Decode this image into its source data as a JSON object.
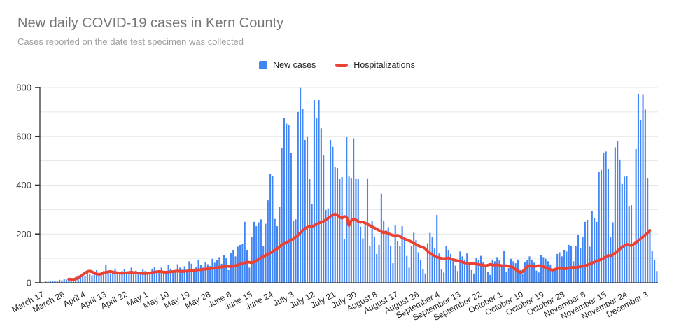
{
  "header": {
    "title": "New daily COVID-19 cases in Kern County",
    "subtitle": "Cases reported on the date test specimen was collected"
  },
  "legend": {
    "items": [
      {
        "label": "New cases",
        "color": "#4285f4",
        "marker": "square"
      },
      {
        "label": "Hospitalizations",
        "color": "#ea4335",
        "marker": "line"
      }
    ]
  },
  "colors": {
    "bar": "#4285f4",
    "line": "#ea4335",
    "grid": "#e6e6e6",
    "axis": "#333333",
    "title": "#757575",
    "subtitle": "#9e9e9e",
    "tick_label": "#3c3c3c"
  },
  "chart_data": {
    "type": "combo",
    "title": "New daily COVID-19 cases in Kern County",
    "subtitle": "Cases reported on the date test specimen was collected",
    "xlabel": "",
    "ylabel": "",
    "ylim": [
      0,
      800
    ],
    "y_tick_labels": [
      "0",
      "200",
      "400",
      "600",
      "800"
    ],
    "y_tick_values": [
      0,
      200,
      400,
      600,
      800
    ],
    "y_minor_grid_step": 100,
    "grid": true,
    "legend_position": "top",
    "x_start_date": "March 17",
    "x_end_date": "December 8",
    "x_tick_interval_days": 9,
    "x_tick_labels": [
      "March 17",
      "March 26",
      "April 4",
      "April 13",
      "April 22",
      "May 1",
      "May 10",
      "May 19",
      "May 28",
      "June 6",
      "June 15",
      "June 24",
      "July 3",
      "July 12",
      "July 21",
      "July 30",
      "August 8",
      "August 17",
      "August 26",
      "September 4",
      "September 13",
      "September 22",
      "October 1",
      "October 10",
      "October 19",
      "October 28",
      "November 6",
      "November 15",
      "November 24",
      "December 3"
    ],
    "series": [
      {
        "name": "New cases",
        "type": "bar",
        "color": "#4285f4",
        "values": [
          3,
          2,
          5,
          4,
          7,
          6,
          9,
          8,
          12,
          10,
          15,
          13,
          18,
          16,
          20,
          24,
          30,
          26,
          35,
          28,
          42,
          38,
          30,
          45,
          52,
          40,
          36,
          48,
          74,
          44,
          38,
          42,
          58,
          35,
          35,
          48,
          55,
          42,
          38,
          62,
          46,
          50,
          40,
          36,
          54,
          48,
          42,
          36,
          58,
          66,
          44,
          52,
          62,
          40,
          38,
          72,
          58,
          50,
          46,
          76,
          62,
          54,
          68,
          46,
          88,
          78,
          58,
          66,
          95,
          72,
          62,
          85,
          76,
          68,
          98,
          82,
          92,
          105,
          78,
          112,
          100,
          52,
          122,
          135,
          108,
          148,
          155,
          160,
          250,
          135,
          62,
          188,
          250,
          232,
          248,
          260,
          150,
          242,
          338,
          445,
          438,
          262,
          232,
          312,
          552,
          675,
          652,
          648,
          532,
          255,
          260,
          700,
          798,
          712,
          585,
          600,
          427,
          322,
          748,
          676,
          748,
          633,
          523,
          298,
          305,
          585,
          557,
          475,
          470,
          427,
          433,
          179,
          598,
          435,
          430,
          592,
          428,
          425,
          230,
          182,
          235,
          428,
          150,
          252,
          190,
          118,
          155,
          365,
          255,
          215,
          228,
          150,
          80,
          235,
          172,
          150,
          232,
          190,
          110,
          62,
          150,
          205,
          175,
          125,
          95,
          55,
          38,
          162,
          205,
          188,
          140,
          278,
          120,
          55,
          42,
          150,
          135,
          118,
          92,
          70,
          48,
          128,
          108,
          95,
          120,
          85,
          52,
          38,
          102,
          92,
          110,
          85,
          72,
          45,
          32,
          95,
          88,
          105,
          92,
          75,
          132,
          45,
          60,
          98,
          88,
          80,
          95,
          52,
          38,
          85,
          92,
          108,
          95,
          82,
          50,
          42,
          112,
          105,
          98,
          88,
          75,
          48,
          52,
          118,
          125,
          108,
          135,
          128,
          155,
          150,
          88,
          152,
          198,
          142,
          188,
          250,
          258,
          148,
          295,
          265,
          250,
          455,
          462,
          532,
          538,
          465,
          188,
          248,
          555,
          580,
          505,
          405,
          435,
          438,
          315,
          318,
          148,
          548,
          772,
          665,
          770,
          710,
          430,
          210,
          130,
          92,
          48
        ]
      },
      {
        "name": "Hospitalizations",
        "type": "line",
        "color": "#ea4335",
        "values": [
          null,
          null,
          null,
          null,
          null,
          null,
          null,
          null,
          null,
          null,
          null,
          null,
          15,
          14,
          13,
          16,
          20,
          26,
          33,
          40,
          46,
          48,
          45,
          40,
          36,
          34,
          36,
          40,
          43,
          45,
          46,
          44,
          42,
          41,
          40,
          39,
          40,
          41,
          42,
          43,
          42,
          41,
          40,
          39,
          38,
          38,
          39,
          40,
          42,
          44,
          45,
          46,
          45,
          44,
          43,
          44,
          45,
          46,
          47,
          48,
          47,
          46,
          47,
          48,
          49,
          50,
          51,
          52,
          53,
          54,
          55,
          56,
          57,
          58,
          59,
          60,
          62,
          63,
          65,
          66,
          68,
          67,
          66,
          68,
          70,
          73,
          76,
          79,
          82,
          85,
          84,
          82,
          85,
          90,
          96,
          102,
          108,
          112,
          116,
          122,
          128,
          134,
          140,
          148,
          155,
          160,
          165,
          170,
          175,
          180,
          188,
          195,
          205,
          215,
          222,
          228,
          232,
          230,
          235,
          240,
          245,
          248,
          252,
          258,
          265,
          272,
          278,
          282,
          276,
          270,
          265,
          272,
          268,
          235,
          255,
          262,
          258,
          252,
          248,
          250,
          245,
          240,
          235,
          230,
          225,
          220,
          215,
          210,
          205,
          208,
          202,
          198,
          195,
          192,
          195,
          190,
          185,
          180,
          175,
          172,
          168,
          162,
          158,
          152,
          148,
          145,
          140,
          130,
          122,
          115,
          110,
          105,
          102,
          100,
          98,
          100,
          102,
          98,
          95,
          92,
          90,
          88,
          85,
          82,
          80,
          78,
          80,
          78,
          76,
          75,
          73,
          72,
          70,
          72,
          75,
          73,
          72,
          74,
          72,
          70,
          68,
          70,
          68,
          66,
          62,
          55,
          48,
          42,
          45,
          55,
          65,
          70,
          68,
          67,
          68,
          70,
          68,
          66,
          62,
          58,
          54,
          52,
          55,
          58,
          60,
          58,
          57,
          58,
          60,
          62,
          63,
          62,
          64,
          66,
          68,
          70,
          73,
          76,
          80,
          85,
          88,
          92,
          96,
          100,
          106,
          112,
          110,
          115,
          122,
          130,
          138,
          146,
          152,
          158,
          155,
          152,
          158,
          165,
          172,
          180,
          188,
          196,
          205,
          215,
          null,
          null,
          null
        ]
      }
    ]
  }
}
